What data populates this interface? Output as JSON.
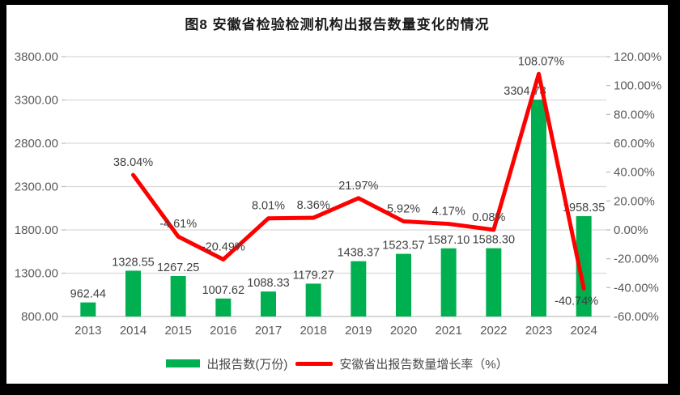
{
  "title": "图8  安徽省检验检测机构出报告数量变化的情况",
  "frame": {
    "border_color": "#000000",
    "background": "#ffffff"
  },
  "colors": {
    "bar": "#00B050",
    "line": "#FE0000",
    "grid": "#D9D9D9",
    "axis_line": "#BFBFBF",
    "axis_text": "#595959",
    "data_label_text": "#404040",
    "title_text": "#1a1a1a"
  },
  "chart_data": {
    "type": "bar",
    "subtype": "combo-bar-line",
    "title": "图8  安徽省检验检测机构出报告数量变化的情况",
    "categories": [
      "2013",
      "2014",
      "2015",
      "2016",
      "2017",
      "2018",
      "2019",
      "2020",
      "2021",
      "2022",
      "2023",
      "2024"
    ],
    "series": [
      {
        "name": "出报告数(万份)",
        "type": "bar",
        "axis": "left",
        "color": "#00B050",
        "values": [
          962.44,
          1328.55,
          1267.25,
          1007.62,
          1088.33,
          1179.27,
          1438.37,
          1523.57,
          1587.1,
          1588.3,
          3304.78,
          1958.35
        ]
      },
      {
        "name": "安徽省出报告数量增长率（%）",
        "type": "line",
        "axis": "right",
        "color": "#FE0000",
        "values": [
          null,
          38.04,
          -4.61,
          -20.49,
          8.01,
          8.36,
          21.97,
          5.92,
          4.17,
          0.08,
          108.07,
          -40.74
        ]
      }
    ],
    "left_axis": {
      "min": 800,
      "max": 3800,
      "step": 500,
      "decimals": 2,
      "suffix": ""
    },
    "right_axis": {
      "min": -60,
      "max": 120,
      "step": 20,
      "decimals": 2,
      "suffix": "%"
    },
    "grid": true,
    "legend_position": "bottom",
    "data_labels": true,
    "label_layout_hints": {
      "bar_label_dx": {
        "10": -17
      },
      "line_label_dx": {
        "9": -6,
        "10": 3,
        "11": -9
      },
      "line_label_below": [
        11
      ]
    }
  }
}
